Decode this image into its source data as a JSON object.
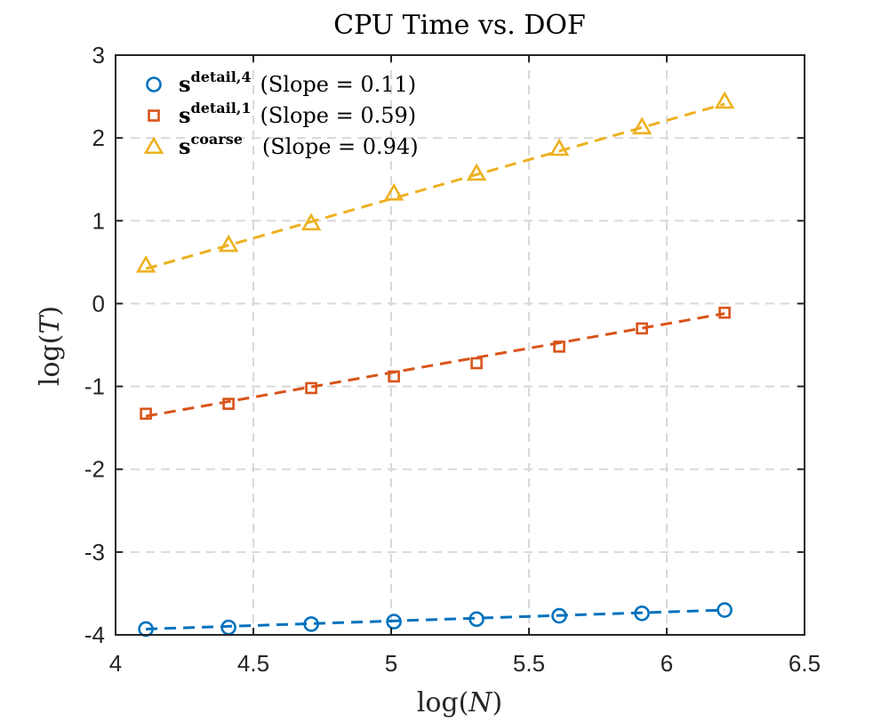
{
  "chart_data": {
    "type": "scatter",
    "title": "CPU Time vs. DOF",
    "xlabel_func": "log(",
    "xlabel_var": "N",
    "xlabel_close": ")",
    "ylabel_func": "log(",
    "ylabel_var": "T",
    "ylabel_close": ")",
    "xlim": [
      4,
      6.5
    ],
    "ylim": [
      -4,
      3
    ],
    "xticks": [
      4,
      4.5,
      5,
      5.5,
      6,
      6.5
    ],
    "xtick_labels": [
      "4",
      "4.5",
      "5",
      "5.5",
      "6",
      "6.5"
    ],
    "yticks": [
      -4,
      -3,
      -2,
      -1,
      0,
      1,
      2,
      3
    ],
    "ytick_labels": [
      "-4",
      "-3",
      "-2",
      "-1",
      "0",
      "1",
      "2",
      "3"
    ],
    "grid": true,
    "legend_position": "top-left",
    "x": [
      4.11,
      4.41,
      4.71,
      5.01,
      5.31,
      5.61,
      5.91,
      6.21
    ],
    "series": [
      {
        "name": "s detail,4",
        "legend_symbol": "s",
        "legend_sup": "detail,4",
        "legend_note": "(Slope = 0.11)",
        "marker": "circle",
        "color": "#0072BD",
        "values": [
          -3.93,
          -3.91,
          -3.87,
          -3.84,
          -3.81,
          -3.77,
          -3.74,
          -3.7
        ],
        "fit": [
          -3.93,
          -3.7
        ]
      },
      {
        "name": "s detail,1",
        "legend_symbol": "s",
        "legend_sup": "detail,1",
        "legend_note": "(Slope = 0.59)",
        "marker": "square",
        "color": "#D95319",
        "values": [
          -1.33,
          -1.21,
          -1.02,
          -0.88,
          -0.72,
          -0.52,
          -0.3,
          -0.11
        ],
        "fit": [
          -1.36,
          -0.12
        ]
      },
      {
        "name": "s coarse",
        "legend_symbol": "s",
        "legend_sup": "coarse",
        "legend_note": "(Slope = 0.94)",
        "marker": "triangle",
        "color": "#EDB120",
        "values": [
          0.46,
          0.71,
          0.97,
          1.33,
          1.57,
          1.87,
          2.13,
          2.44
        ],
        "fit": [
          0.42,
          2.41
        ]
      }
    ]
  }
}
